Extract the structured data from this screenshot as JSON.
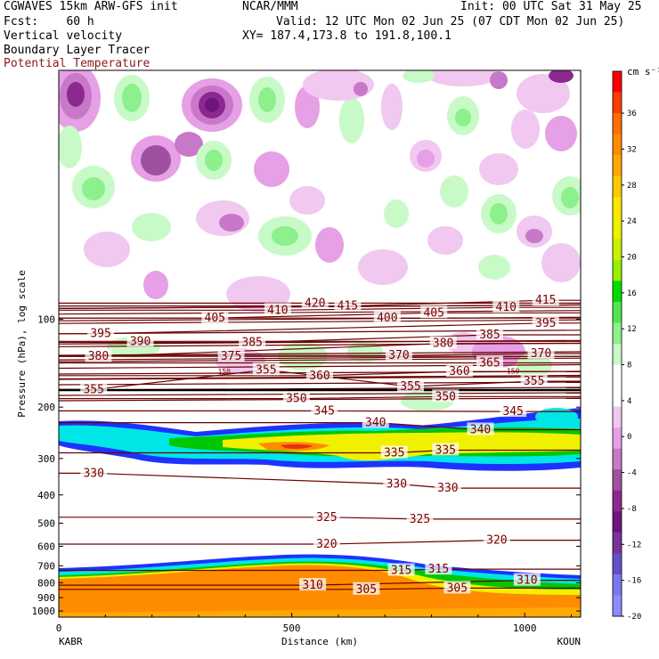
{
  "header": {
    "line1_left": "CGWAVES 15km ARW-GFS init",
    "line1_center": "NCAR/MMM",
    "line1_right": "Init: 00 UTC Sat 31 May 25",
    "line2_left": "Fcst:    60 h",
    "line2_right": "Valid: 12 UTC Mon 02 Jun 25 (07 CDT Mon 02 Jun 25)",
    "line3_left": "Vertical velocity",
    "line3_right": "XY= 187.4,173.8 to 191.8,100.1",
    "line4_left": "Boundary Layer Tracer",
    "line5_left": "Potential Temperature"
  },
  "colors": {
    "theta_contour": "#6b0000",
    "theta_label": "#7a0000",
    "potential_temperature_title": "#8b1a1a",
    "tracer_blue": "#1e32ff",
    "tracer_cyan": "#00e6e6",
    "tracer_green": "#00c800",
    "tracer_yellow": "#f0f000",
    "tracer_orange": "#ff8c00",
    "tracer_red": "#e63214"
  },
  "chart_data": {
    "type": "heatmap",
    "title": "Vertical velocity / Boundary Layer Tracer / Potential Temperature",
    "xlabel": "Distance (km)",
    "ylabel": "Pressure (hPa), log scale",
    "x_endpoints": [
      "KABR",
      "KOUN"
    ],
    "x_ticks": [
      0,
      500,
      1000
    ],
    "xlim": [
      0,
      1120
    ],
    "y_ticks": [
      100,
      200,
      300,
      400,
      500,
      600,
      700,
      800,
      900,
      1000
    ],
    "ylim": [
      1050,
      14
    ],
    "y_scale": "log",
    "colorbar": {
      "unit": "cm s⁻¹",
      "ticks": [
        36,
        32,
        28,
        24,
        20,
        16,
        12,
        8,
        4,
        0,
        -4,
        -8,
        -12,
        -16,
        -20
      ],
      "colors": [
        "#ff0000",
        "#ff3c00",
        "#ff6e00",
        "#ff8c00",
        "#ffa800",
        "#ffc800",
        "#ffe600",
        "#f0f000",
        "#c8f000",
        "#96f000",
        "#00dc00",
        "#50e650",
        "#8cf08c",
        "#c8fac8",
        "#ffffff",
        "#ffffff",
        "#f0c8f0",
        "#e6a0e6",
        "#c878c8",
        "#a050a0",
        "#8c2890",
        "#6e147d",
        "#78329b",
        "#6450c8",
        "#7878f0",
        "#8c8cff"
      ]
    },
    "theta_labels": [
      {
        "value": 420,
        "x": 550,
        "p": 88
      },
      {
        "value": 415,
        "x": 620,
        "p": 90
      },
      {
        "value": 415,
        "x": 1045,
        "p": 86
      },
      {
        "value": 410,
        "x": 470,
        "p": 93
      },
      {
        "value": 410,
        "x": 960,
        "p": 91
      },
      {
        "value": 405,
        "x": 335,
        "p": 99
      },
      {
        "value": 405,
        "x": 805,
        "p": 95
      },
      {
        "value": 400,
        "x": 705,
        "p": 99
      },
      {
        "value": 395,
        "x": 90,
        "p": 112
      },
      {
        "value": 395,
        "x": 1045,
        "p": 103
      },
      {
        "value": 390,
        "x": 175,
        "p": 119
      },
      {
        "value": 385,
        "x": 415,
        "p": 120
      },
      {
        "value": 385,
        "x": 925,
        "p": 113
      },
      {
        "value": 380,
        "x": 85,
        "p": 134
      },
      {
        "value": 380,
        "x": 825,
        "p": 121
      },
      {
        "value": 375,
        "x": 370,
        "p": 134
      },
      {
        "value": 370,
        "x": 730,
        "p": 133
      },
      {
        "value": 370,
        "x": 1035,
        "p": 131
      },
      {
        "value": 365,
        "x": 925,
        "p": 141
      },
      {
        "value": 360,
        "x": 560,
        "p": 156
      },
      {
        "value": 360,
        "x": 860,
        "p": 151
      },
      {
        "value": 355,
        "x": 445,
        "p": 149
      },
      {
        "value": 355,
        "x": 75,
        "p": 174
      },
      {
        "value": 355,
        "x": 755,
        "p": 170
      },
      {
        "value": 355,
        "x": 1020,
        "p": 163
      },
      {
        "value": 350,
        "x": 510,
        "p": 187
      },
      {
        "value": 350,
        "x": 830,
        "p": 184
      },
      {
        "value": 345,
        "x": 570,
        "p": 206
      },
      {
        "value": 345,
        "x": 975,
        "p": 207
      },
      {
        "value": 340,
        "x": 680,
        "p": 226
      },
      {
        "value": 340,
        "x": 905,
        "p": 239
      },
      {
        "value": 335,
        "x": 720,
        "p": 287
      },
      {
        "value": 335,
        "x": 830,
        "p": 281
      },
      {
        "value": 330,
        "x": 75,
        "p": 337
      },
      {
        "value": 330,
        "x": 725,
        "p": 367
      },
      {
        "value": 330,
        "x": 835,
        "p": 379
      },
      {
        "value": 325,
        "x": 575,
        "p": 477
      },
      {
        "value": 325,
        "x": 775,
        "p": 484
      },
      {
        "value": 320,
        "x": 575,
        "p": 590
      },
      {
        "value": 320,
        "x": 940,
        "p": 572
      },
      {
        "value": 315,
        "x": 735,
        "p": 726
      },
      {
        "value": 315,
        "x": 815,
        "p": 719
      },
      {
        "value": 310,
        "x": 545,
        "p": 816
      },
      {
        "value": 310,
        "x": 1005,
        "p": 785
      },
      {
        "value": 305,
        "x": 660,
        "p": 843
      },
      {
        "value": 305,
        "x": 855,
        "p": 835
      }
    ],
    "small_labels": [
      {
        "text": "150",
        "x": 355,
        "p": 151
      },
      {
        "text": "150",
        "x": 975,
        "p": 150
      }
    ]
  }
}
